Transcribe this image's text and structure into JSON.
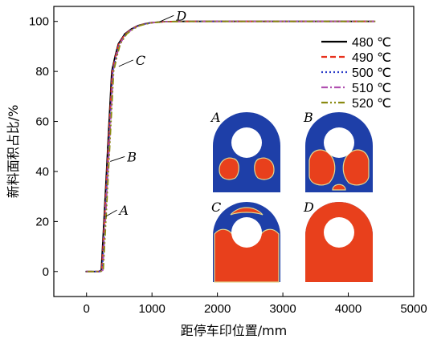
{
  "chart_data": {
    "type": "line",
    "xlabel": "距停车印位置/mm",
    "ylabel": "新料面积占比/%",
    "xlim": [
      -500,
      5000
    ],
    "ylim": [
      -10,
      106
    ],
    "xticks": [
      0,
      1000,
      2000,
      3000,
      4000,
      5000
    ],
    "xtick_labels": [
      "0",
      "1000",
      "2000",
      "3000",
      "4000",
      "5000"
    ],
    "yticks": [
      0,
      20,
      40,
      60,
      80,
      100
    ],
    "ytick_labels": [
      "0",
      "20",
      "40",
      "60",
      "80",
      "100"
    ],
    "legend_position": "top-right",
    "series": [
      {
        "name": "480 ℃",
        "color": "#000000",
        "dash": "solid"
      },
      {
        "name": "490 ℃",
        "color": "#e8321e",
        "dash": "dashed"
      },
      {
        "name": "500 ℃",
        "color": "#2a3cc8",
        "dash": "dotted"
      },
      {
        "name": "510 ℃",
        "color": "#b04fb0",
        "dash": "dashdot"
      },
      {
        "name": "520 ℃",
        "color": "#8a8a10",
        "dash": "dashdotdot"
      }
    ],
    "x": [
      0,
      200,
      240,
      260,
      300,
      350,
      400,
      450,
      500,
      600,
      700,
      800,
      900,
      1000,
      1100,
      1200,
      1500,
      2000,
      3000,
      4000,
      4400
    ],
    "y": [
      0,
      0,
      0.5,
      10,
      30,
      55,
      80,
      86,
      91,
      95,
      97,
      98.3,
      99,
      99.5,
      99.7,
      99.9,
      100,
      100,
      100,
      100,
      100
    ],
    "annotations": [
      {
        "label": "A",
        "x": 280,
        "y": 22
      },
      {
        "label": "B",
        "x": 350,
        "y": 44
      },
      {
        "label": "C",
        "x": 480,
        "y": 82
      },
      {
        "label": "D",
        "x": 1100,
        "y": 99.8
      }
    ],
    "inset_labels": [
      "A",
      "B",
      "C",
      "D"
    ],
    "inset_colors": {
      "new_material": "#e8401c",
      "old_material": "#1e3fa8",
      "hole": "#ffffff",
      "boundary": "#e0d890"
    }
  }
}
